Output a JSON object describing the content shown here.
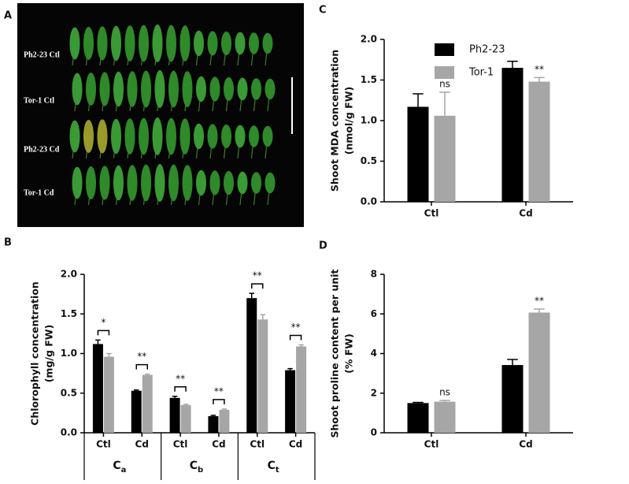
{
  "photo": {
    "label": "A",
    "rows": [
      "Ph2-23 Ctl",
      "Tor-1  Ctl",
      "Ph2-23 Cd",
      "Tor-1  Cd"
    ]
  },
  "chart_data": [
    {
      "type": "bar",
      "label": "B",
      "ylabel": [
        "Chlorophyll concentration",
        "(mg/g FW)"
      ],
      "categories": [
        "Ctl",
        "Cd",
        "Ctl",
        "Cd",
        "Ctl",
        "Cd"
      ],
      "groups": [
        {
          "main": "C",
          "sub": "a"
        },
        {
          "main": "C",
          "sub": "b"
        },
        {
          "main": "C",
          "sub": "t"
        }
      ],
      "series": [
        {
          "name": "Ph2-23",
          "color": "#000000",
          "values": [
            1.12,
            0.53,
            0.44,
            0.21,
            1.7,
            0.79
          ],
          "errors": [
            0.05,
            0.01,
            0.02,
            0.01,
            0.06,
            0.02
          ]
        },
        {
          "name": "Tor-1",
          "color": "#a6a6a6",
          "values": [
            0.96,
            0.73,
            0.35,
            0.29,
            1.43,
            1.09
          ],
          "errors": [
            0.04,
            0.01,
            0.01,
            0.01,
            0.06,
            0.02
          ]
        }
      ],
      "annotations": [
        "*",
        "**",
        "**",
        "**",
        "**",
        "**"
      ],
      "brackets": true,
      "ylim": [
        0,
        2
      ],
      "yticks": [
        {
          "value": 0,
          "label": "0.0"
        },
        {
          "value": 0.5,
          "label": "0.5"
        },
        {
          "value": 1,
          "label": "1.0"
        },
        {
          "value": 1.5,
          "label": "1.5"
        },
        {
          "value": 2,
          "label": "2.0"
        }
      ]
    },
    {
      "type": "bar",
      "label": "C",
      "ylabel": [
        "Shoot MDA concentration",
        "(nmol/g FW)"
      ],
      "categories": [
        "Ctl",
        "Cd"
      ],
      "series": [
        {
          "name": "Ph2-23",
          "color": "#000000",
          "values": [
            1.17,
            1.65
          ],
          "errors": [
            0.16,
            0.08
          ]
        },
        {
          "name": "Tor-1",
          "color": "#a6a6a6",
          "values": [
            1.06,
            1.48
          ],
          "errors": [
            0.29,
            0.05
          ]
        }
      ],
      "annotations": [
        "ns",
        "**"
      ],
      "legend": "upper right",
      "ylim": [
        0,
        2
      ],
      "yticks": [
        {
          "value": 0,
          "label": "0.0"
        },
        {
          "value": 0.5,
          "label": "0.5"
        },
        {
          "value": 1,
          "label": "1.0"
        },
        {
          "value": 1.5,
          "label": "1.5"
        },
        {
          "value": 2,
          "label": "2.0"
        }
      ]
    },
    {
      "type": "bar",
      "label": "D",
      "ylabel": [
        "Shoot proline content per unit",
        "(% FW)"
      ],
      "categories": [
        "Ctl",
        "Cd"
      ],
      "series": [
        {
          "name": "Ph2-23",
          "color": "#000000",
          "values": [
            1.5,
            3.42
          ],
          "errors": [
            0.03,
            0.28
          ]
        },
        {
          "name": "Tor-1",
          "color": "#a6a6a6",
          "values": [
            1.57,
            6.07
          ],
          "errors": [
            0.06,
            0.18
          ]
        }
      ],
      "annotations": [
        "ns",
        "**"
      ],
      "ylim": [
        0,
        8
      ],
      "yticks": [
        0,
        2,
        4,
        6,
        8
      ]
    }
  ]
}
